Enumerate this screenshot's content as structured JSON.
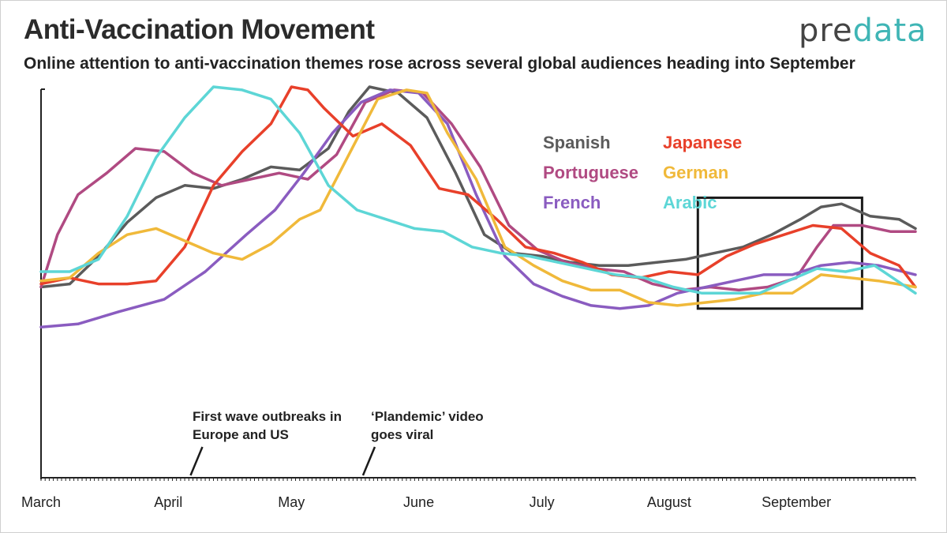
{
  "header": {
    "title": "Anti-Vaccination Movement",
    "subtitle": "Online attention to anti-vaccination themes rose across several global audiences heading into September",
    "logo_pre": "pre",
    "logo_data": "data"
  },
  "chart_data": {
    "type": "line",
    "title": "Anti-Vaccination Movement",
    "subtitle": "Online attention to anti-vaccination themes rose across several global audiences heading into September",
    "xlabel": "",
    "ylabel": "",
    "x_range": [
      "2020-03-01",
      "2020-09-30"
    ],
    "ylim": [
      0,
      100
    ],
    "y_axis_labels_shown": false,
    "grid": false,
    "legend_position": "top-right",
    "x_ticks": [
      {
        "label": "March",
        "date": "2020-03-01"
      },
      {
        "label": "April",
        "date": "2020-04-01"
      },
      {
        "label": "May",
        "date": "2020-05-01"
      },
      {
        "label": "June",
        "date": "2020-06-01"
      },
      {
        "label": "July",
        "date": "2020-07-01"
      },
      {
        "label": "August",
        "date": "2020-08-01"
      },
      {
        "label": "September",
        "date": "2020-09-01"
      }
    ],
    "series": [
      {
        "name": "Spanish",
        "color": "#5b5b5b",
        "points": [
          [
            "2020-03-01",
            35
          ],
          [
            "2020-03-08",
            36
          ],
          [
            "2020-03-15",
            45
          ],
          [
            "2020-03-22",
            56
          ],
          [
            "2020-03-29",
            64
          ],
          [
            "2020-04-05",
            68
          ],
          [
            "2020-04-12",
            67
          ],
          [
            "2020-04-19",
            70
          ],
          [
            "2020-04-26",
            74
          ],
          [
            "2020-05-03",
            73
          ],
          [
            "2020-05-10",
            80
          ],
          [
            "2020-05-15",
            92
          ],
          [
            "2020-05-20",
            100
          ],
          [
            "2020-05-27",
            98
          ],
          [
            "2020-06-03",
            90
          ],
          [
            "2020-06-10",
            72
          ],
          [
            "2020-06-17",
            52
          ],
          [
            "2020-06-24",
            46
          ],
          [
            "2020-07-01",
            45
          ],
          [
            "2020-07-08",
            43
          ],
          [
            "2020-07-15",
            42
          ],
          [
            "2020-07-22",
            42
          ],
          [
            "2020-07-29",
            43
          ],
          [
            "2020-08-05",
            44
          ],
          [
            "2020-08-12",
            46
          ],
          [
            "2020-08-19",
            48
          ],
          [
            "2020-08-26",
            52
          ],
          [
            "2020-09-02",
            57
          ],
          [
            "2020-09-07",
            61
          ],
          [
            "2020-09-12",
            62
          ],
          [
            "2020-09-19",
            58
          ],
          [
            "2020-09-26",
            57
          ],
          [
            "2020-09-30",
            54
          ]
        ]
      },
      {
        "name": "Portuguese",
        "color": "#b04a82",
        "points": [
          [
            "2020-03-01",
            35
          ],
          [
            "2020-03-05",
            52
          ],
          [
            "2020-03-10",
            65
          ],
          [
            "2020-03-17",
            72
          ],
          [
            "2020-03-24",
            80
          ],
          [
            "2020-03-31",
            79
          ],
          [
            "2020-04-07",
            72
          ],
          [
            "2020-04-14",
            68
          ],
          [
            "2020-04-21",
            70
          ],
          [
            "2020-04-28",
            72
          ],
          [
            "2020-05-05",
            70
          ],
          [
            "2020-05-12",
            78
          ],
          [
            "2020-05-19",
            95
          ],
          [
            "2020-05-26",
            99
          ],
          [
            "2020-06-02",
            98
          ],
          [
            "2020-06-09",
            88
          ],
          [
            "2020-06-16",
            74
          ],
          [
            "2020-06-23",
            55
          ],
          [
            "2020-06-30",
            47
          ],
          [
            "2020-07-07",
            43
          ],
          [
            "2020-07-14",
            41
          ],
          [
            "2020-07-21",
            40
          ],
          [
            "2020-07-28",
            36
          ],
          [
            "2020-08-04",
            34
          ],
          [
            "2020-08-11",
            35
          ],
          [
            "2020-08-18",
            34
          ],
          [
            "2020-08-25",
            35
          ],
          [
            "2020-09-01",
            38
          ],
          [
            "2020-09-06",
            48
          ],
          [
            "2020-09-10",
            55
          ],
          [
            "2020-09-17",
            55
          ],
          [
            "2020-09-24",
            53
          ],
          [
            "2020-09-30",
            53
          ]
        ]
      },
      {
        "name": "French",
        "color": "#8a5cc0",
        "points": [
          [
            "2020-03-01",
            22
          ],
          [
            "2020-03-10",
            23
          ],
          [
            "2020-03-20",
            27
          ],
          [
            "2020-03-31",
            31
          ],
          [
            "2020-04-10",
            40
          ],
          [
            "2020-04-20",
            52
          ],
          [
            "2020-04-27",
            60
          ],
          [
            "2020-05-04",
            72
          ],
          [
            "2020-05-11",
            85
          ],
          [
            "2020-05-18",
            95
          ],
          [
            "2020-05-25",
            99
          ],
          [
            "2020-06-01",
            98
          ],
          [
            "2020-06-08",
            88
          ],
          [
            "2020-06-15",
            65
          ],
          [
            "2020-06-22",
            45
          ],
          [
            "2020-06-29",
            36
          ],
          [
            "2020-07-06",
            32
          ],
          [
            "2020-07-13",
            29
          ],
          [
            "2020-07-20",
            28
          ],
          [
            "2020-07-27",
            29
          ],
          [
            "2020-08-03",
            33
          ],
          [
            "2020-08-10",
            35
          ],
          [
            "2020-08-17",
            37
          ],
          [
            "2020-08-24",
            39
          ],
          [
            "2020-08-31",
            39
          ],
          [
            "2020-09-07",
            42
          ],
          [
            "2020-09-14",
            43
          ],
          [
            "2020-09-21",
            42
          ],
          [
            "2020-09-30",
            39
          ]
        ]
      },
      {
        "name": "Japanese",
        "color": "#e8402a",
        "points": [
          [
            "2020-03-01",
            36
          ],
          [
            "2020-03-08",
            38
          ],
          [
            "2020-03-15",
            36
          ],
          [
            "2020-03-22",
            36
          ],
          [
            "2020-03-29",
            37
          ],
          [
            "2020-04-05",
            48
          ],
          [
            "2020-04-12",
            68
          ],
          [
            "2020-04-19",
            79
          ],
          [
            "2020-04-26",
            88
          ],
          [
            "2020-05-01",
            100
          ],
          [
            "2020-05-05",
            99
          ],
          [
            "2020-05-09",
            93
          ],
          [
            "2020-05-16",
            84
          ],
          [
            "2020-05-23",
            88
          ],
          [
            "2020-05-30",
            81
          ],
          [
            "2020-06-06",
            67
          ],
          [
            "2020-06-13",
            65
          ],
          [
            "2020-06-20",
            57
          ],
          [
            "2020-06-27",
            48
          ],
          [
            "2020-07-04",
            46
          ],
          [
            "2020-07-11",
            43
          ],
          [
            "2020-07-18",
            39
          ],
          [
            "2020-07-25",
            38
          ],
          [
            "2020-08-01",
            40
          ],
          [
            "2020-08-08",
            39
          ],
          [
            "2020-08-15",
            45
          ],
          [
            "2020-08-22",
            49
          ],
          [
            "2020-08-29",
            52
          ],
          [
            "2020-09-05",
            55
          ],
          [
            "2020-09-12",
            54
          ],
          [
            "2020-09-19",
            46
          ],
          [
            "2020-09-26",
            42
          ],
          [
            "2020-09-30",
            35
          ]
        ]
      },
      {
        "name": "German",
        "color": "#f0b93a",
        "points": [
          [
            "2020-03-01",
            37
          ],
          [
            "2020-03-08",
            38
          ],
          [
            "2020-03-15",
            46
          ],
          [
            "2020-03-22",
            52
          ],
          [
            "2020-03-29",
            54
          ],
          [
            "2020-04-05",
            50
          ],
          [
            "2020-04-12",
            46
          ],
          [
            "2020-04-19",
            44
          ],
          [
            "2020-04-26",
            49
          ],
          [
            "2020-05-03",
            57
          ],
          [
            "2020-05-08",
            60
          ],
          [
            "2020-05-15",
            78
          ],
          [
            "2020-05-22",
            96
          ],
          [
            "2020-05-29",
            99
          ],
          [
            "2020-06-03",
            98
          ],
          [
            "2020-06-08",
            85
          ],
          [
            "2020-06-15",
            70
          ],
          [
            "2020-06-22",
            48
          ],
          [
            "2020-06-29",
            42
          ],
          [
            "2020-07-06",
            37
          ],
          [
            "2020-07-13",
            34
          ],
          [
            "2020-07-20",
            34
          ],
          [
            "2020-07-27",
            30
          ],
          [
            "2020-08-03",
            29
          ],
          [
            "2020-08-10",
            30
          ],
          [
            "2020-08-17",
            31
          ],
          [
            "2020-08-24",
            33
          ],
          [
            "2020-08-31",
            33
          ],
          [
            "2020-09-07",
            39
          ],
          [
            "2020-09-14",
            38
          ],
          [
            "2020-09-21",
            37
          ],
          [
            "2020-09-30",
            35
          ]
        ]
      },
      {
        "name": "Arabic",
        "color": "#5dd6d6",
        "points": [
          [
            "2020-03-01",
            40
          ],
          [
            "2020-03-08",
            40
          ],
          [
            "2020-03-15",
            44
          ],
          [
            "2020-03-22",
            58
          ],
          [
            "2020-03-29",
            77
          ],
          [
            "2020-04-05",
            90
          ],
          [
            "2020-04-12",
            100
          ],
          [
            "2020-04-19",
            99
          ],
          [
            "2020-04-26",
            96
          ],
          [
            "2020-05-03",
            85
          ],
          [
            "2020-05-10",
            68
          ],
          [
            "2020-05-17",
            60
          ],
          [
            "2020-05-24",
            57
          ],
          [
            "2020-05-31",
            54
          ],
          [
            "2020-06-07",
            53
          ],
          [
            "2020-06-14",
            48
          ],
          [
            "2020-06-21",
            46
          ],
          [
            "2020-06-28",
            45
          ],
          [
            "2020-07-05",
            43
          ],
          [
            "2020-07-12",
            41
          ],
          [
            "2020-07-19",
            39
          ],
          [
            "2020-07-26",
            38
          ],
          [
            "2020-08-02",
            35
          ],
          [
            "2020-08-09",
            33
          ],
          [
            "2020-08-16",
            33
          ],
          [
            "2020-08-23",
            33
          ],
          [
            "2020-08-30",
            37
          ],
          [
            "2020-09-06",
            41
          ],
          [
            "2020-09-13",
            40
          ],
          [
            "2020-09-20",
            42
          ],
          [
            "2020-09-30",
            33
          ]
        ]
      }
    ],
    "annotations": [
      {
        "lines": [
          "First wave outbreaks in",
          "Europe and US"
        ],
        "date": "2020-04-07"
      },
      {
        "lines": [
          "‘Plandemic’ video",
          "goes viral"
        ],
        "date": "2020-05-19"
      }
    ],
    "highlight_box": {
      "x_start": "2020-08-08",
      "x_end": "2020-09-17",
      "y_start": 28,
      "y_end": 64
    }
  }
}
